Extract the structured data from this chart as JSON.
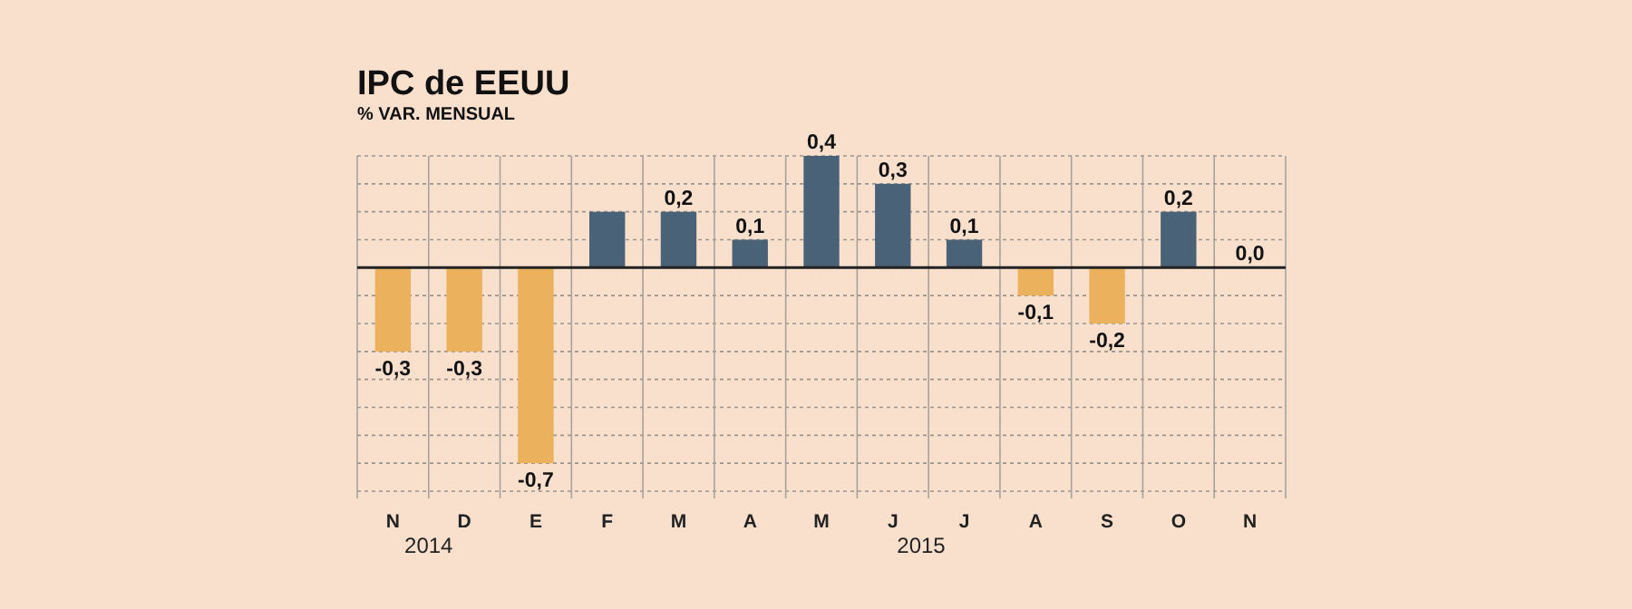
{
  "chart_data": {
    "type": "bar",
    "title": "IPC de EEUU",
    "subtitle": "% VAR. MENSUAL",
    "categories": [
      "N",
      "D",
      "E",
      "F",
      "M",
      "A",
      "M",
      "J",
      "J",
      "A",
      "S",
      "O",
      "N"
    ],
    "values": [
      -0.3,
      -0.3,
      -0.7,
      0.2,
      0.2,
      0.1,
      0.4,
      0.3,
      0.1,
      -0.1,
      -0.2,
      0.2,
      0.0
    ],
    "value_labels": [
      "-0,3",
      "-0,3",
      "-0,7",
      null,
      "0,2",
      "0,1",
      "0,4",
      "0,3",
      "0,1",
      "-0,1",
      "-0,2",
      "0,2",
      "0,0"
    ],
    "colors": [
      "#ebb15c",
      "#ebb15c",
      "#ebb15c",
      "#4a6277",
      "#4a6277",
      "#4a6277",
      "#4a6277",
      "#4a6277",
      "#4a6277",
      "#ebb15c",
      "#ebb15c",
      "#4a6277",
      "#4a6277"
    ],
    "ylim": [
      -0.8,
      0.4
    ],
    "yticks": [
      {
        "value": 0.4,
        "label": null
      },
      {
        "value": 0.3,
        "label": null
      },
      {
        "value": 0.2,
        "label": null
      },
      {
        "value": 0.1,
        "label": null
      },
      {
        "value": 0,
        "label": null
      },
      {
        "value": -0.1,
        "label": null
      },
      {
        "value": -0.2,
        "label": null
      },
      {
        "value": -0.3,
        "label": null
      },
      {
        "value": -0.4,
        "label": null
      },
      {
        "value": -0.5,
        "label": null
      },
      {
        "value": -0.6,
        "label": null
      },
      {
        "value": -0.7,
        "label": null
      },
      {
        "value": -0.8,
        "label": null
      }
    ],
    "tick_labels": "x",
    "grid": true,
    "annotations": [
      "2014",
      "2015"
    ]
  }
}
